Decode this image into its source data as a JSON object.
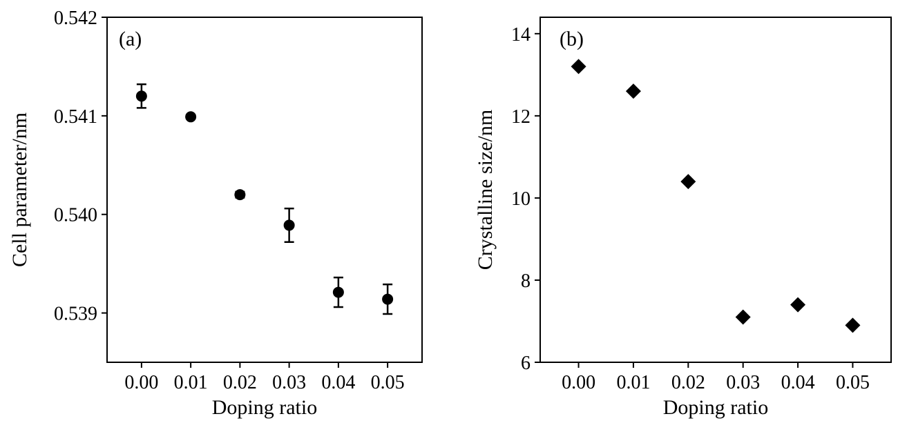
{
  "chart_data": [
    {
      "type": "scatter",
      "panel_label": "(a)",
      "xlabel": "Doping ratio",
      "ylabel": "Cell parameter/nm",
      "xlim": [
        -0.007,
        0.057
      ],
      "ylim": [
        0.5385,
        0.542
      ],
      "xticks": [
        0.0,
        0.01,
        0.02,
        0.03,
        0.04,
        0.05
      ],
      "xtick_labels": [
        "0.00",
        "0.01",
        "0.02",
        "0.03",
        "0.04",
        "0.05"
      ],
      "yticks": [
        0.539,
        0.54,
        0.541,
        0.542
      ],
      "ytick_labels": [
        "0.539",
        "0.540",
        "0.541",
        "0.542"
      ],
      "marker": "circle",
      "grid": false,
      "color": "#000000",
      "x": [
        0.0,
        0.01,
        0.02,
        0.03,
        0.04,
        0.05
      ],
      "y": [
        0.5412,
        0.54099,
        0.5402,
        0.53989,
        0.53921,
        0.53914
      ],
      "yerr": [
        0.00012,
        2e-05,
        3e-05,
        0.00017,
        0.00015,
        0.00015
      ]
    },
    {
      "type": "scatter",
      "panel_label": "(b)",
      "xlabel": "Doping ratio",
      "ylabel": "Crystalline size/nm",
      "xlim": [
        -0.007,
        0.057
      ],
      "ylim": [
        6,
        14.4
      ],
      "xticks": [
        0.0,
        0.01,
        0.02,
        0.03,
        0.04,
        0.05
      ],
      "xtick_labels": [
        "0.00",
        "0.01",
        "0.02",
        "0.03",
        "0.04",
        "0.05"
      ],
      "yticks": [
        6,
        8,
        10,
        12,
        14
      ],
      "ytick_labels": [
        "6",
        "8",
        "10",
        "12",
        "14"
      ],
      "marker": "diamond",
      "grid": false,
      "color": "#000000",
      "x": [
        0.0,
        0.01,
        0.02,
        0.03,
        0.04,
        0.05
      ],
      "y": [
        13.2,
        12.6,
        10.4,
        7.1,
        7.4,
        6.9
      ]
    }
  ]
}
